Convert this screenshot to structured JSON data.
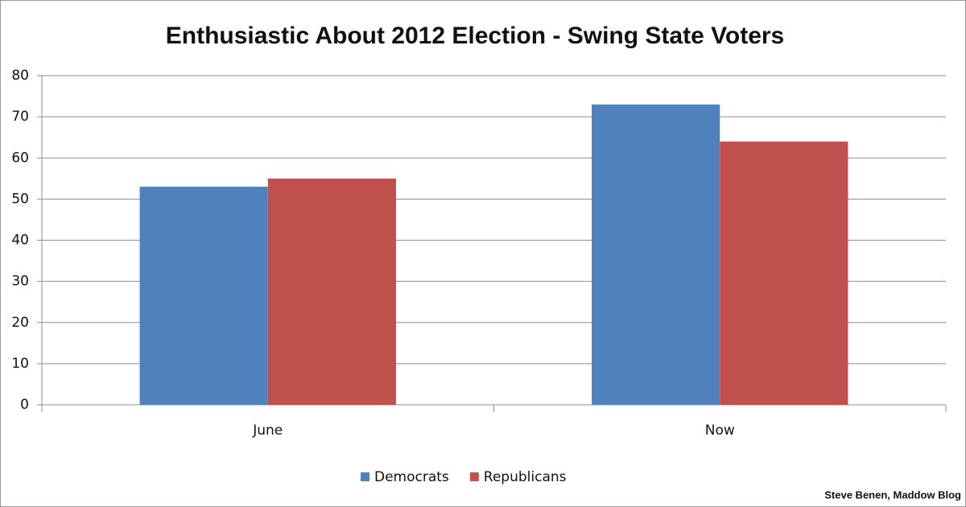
{
  "chart_data": {
    "type": "bar",
    "title": "Enthusiastic About 2012 Election - Swing State Voters",
    "categories": [
      "June",
      "Now"
    ],
    "series": [
      {
        "name": "Democrats",
        "color": "#4f81bd",
        "values": [
          53,
          73
        ]
      },
      {
        "name": "Republicans",
        "color": "#c0504d",
        "values": [
          55,
          64
        ]
      }
    ],
    "ylim": [
      0,
      80
    ],
    "yticks": [
      0,
      10,
      20,
      30,
      40,
      50,
      60,
      70,
      80
    ],
    "grid": true,
    "legend": "bottom",
    "source": "Steve Benen, Maddow Blog"
  }
}
